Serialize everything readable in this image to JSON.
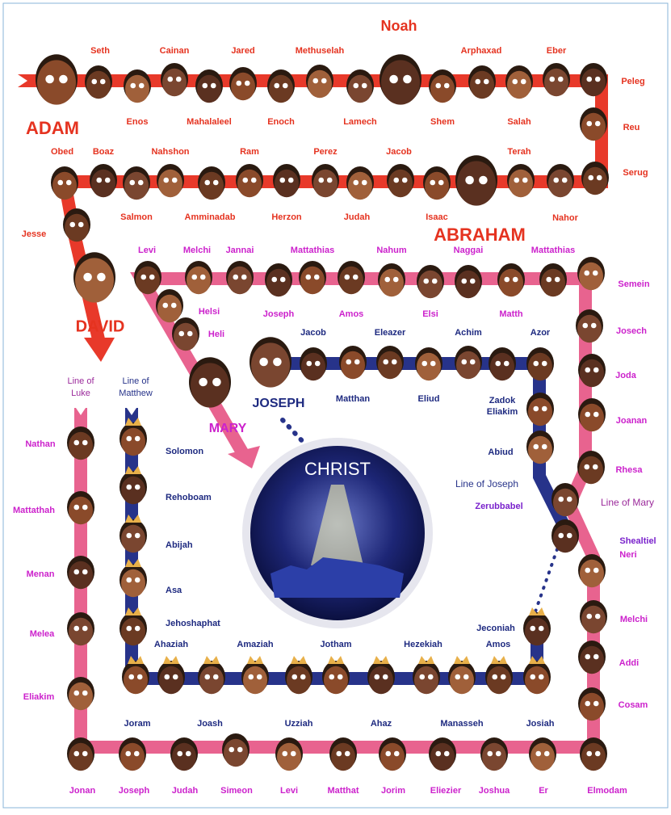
{
  "genealogy": {
    "adam_to_david": [
      "ADAM",
      "Seth",
      "Enos",
      "Cainan",
      "Mahalaleel",
      "Jared",
      "Enoch",
      "Methuselah",
      "Lamech",
      "Noah",
      "Shem",
      "Arphaxad",
      "Salah",
      "Eber",
      "Peleg",
      "Reu",
      "Serug",
      "Terah",
      "Nahor",
      "ABRAHAM",
      "Isaac",
      "Jacob",
      "Judah",
      "Perez",
      "Herzon",
      "Ram",
      "Amminadab",
      "Nahshon",
      "Salmon",
      "Boaz",
      "Obed",
      "Jesse",
      "DAVID"
    ],
    "line_of_mary": [
      "Levi",
      "Melchi",
      "Jannai",
      "Joseph",
      "Mattathias",
      "Amos",
      "Nahum",
      "Elsi",
      "Naggai",
      "Matth",
      "Mattathias",
      "Helsi",
      "Heli",
      "MARY"
    ],
    "line_of_luke": [
      "Semein",
      "Josech",
      "Joda",
      "Joanan",
      "Rhesa",
      "Neri",
      "Melchi",
      "Addi",
      "Cosam",
      "Elmodam",
      "Er",
      "Joshua",
      "Eliezier",
      "Jorim",
      "Matthat",
      "Levi",
      "Simeon",
      "Judah",
      "Joseph",
      "Jonan",
      "Eliakim",
      "Melea",
      "Menan",
      "Mattathah",
      "Nathan"
    ],
    "line_of_joseph": [
      "JOSEPH",
      "Jacob",
      "Matthan",
      "Eleazer",
      "Eliud",
      "Achim",
      "Zadok",
      "Eliakim",
      "Azor",
      "Abiud",
      "Zerubbabel",
      "Shealtiel"
    ],
    "line_of_matthew": [
      "Jeconiah",
      "Josiah",
      "Amos",
      "Manasseh",
      "Hezekiah",
      "Ahaz",
      "Jotham",
      "Uzziah",
      "Amaziah",
      "Joash",
      "Ahaziah",
      "Joram",
      "Jehoshaphat",
      "Asa",
      "Abijah",
      "Rehoboam",
      "Solomon"
    ]
  },
  "headings": {
    "line_of_luke": [
      "Line of",
      "Luke"
    ],
    "line_of_matthew": [
      "Line of",
      "Matthew"
    ],
    "line_of_joseph": "Line of Joseph",
    "line_of_mary": "Line of Mary"
  },
  "center": "CHRIST"
}
